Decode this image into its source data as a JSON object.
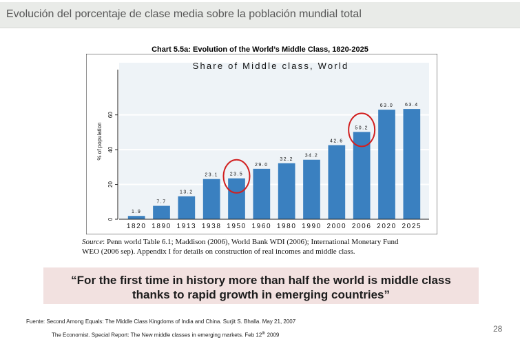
{
  "header": {
    "title": "Evolución del porcentaje de clase media sobre la población mundial total"
  },
  "chart_data": {
    "type": "bar",
    "figure_title": "Chart 5.5a: Evolution of the World’s Middle Class, 1820-2025",
    "title": "Share of Middle class, World",
    "ylabel": "% of population",
    "xlabel": "",
    "ylim": [
      0,
      90
    ],
    "yticks": [
      "0",
      "20",
      "40",
      "60"
    ],
    "categories": [
      "1820",
      "1890",
      "1913",
      "1938",
      "1950",
      "1960",
      "1980",
      "1990",
      "2000",
      "2006",
      "2020",
      "2025"
    ],
    "values": [
      1.9,
      7.7,
      13.2,
      23.1,
      23.5,
      29.0,
      32.2,
      34.2,
      42.6,
      50.2,
      63.0,
      63.4
    ],
    "value_labels": [
      "1.9",
      "7.7",
      "13.2",
      "23.1",
      "23.5",
      "29.0",
      "32.2",
      "34.2",
      "42.6",
      "50.2",
      "63.0",
      "63.4"
    ],
    "highlighted": [
      "1950",
      "2006"
    ],
    "bar_color": "#3a80c0",
    "highlight_color": "#d11f1f",
    "grid": true
  },
  "source": {
    "label": "Source",
    "line1": ": Penn world Table 6.1; Maddison (2006), World Bank WDI (2006); International Monetary Fund",
    "line2": "WEO (2006 sep). Appendix I for details on construction of real incomes and middle class."
  },
  "quote": {
    "line1": "“For the first time in history more than half the world is middle class",
    "line2": "thanks to rapid growth in emerging countries”"
  },
  "footer": {
    "fuente": "Fuente:  Second Among Equals: The Middle Class Kingdoms of India and China. Surjit S. Bhalla. May 21, 2007",
    "economist_main": "The Economist. Special Report: The New middle classes in emerging markets. Feb 12",
    "economist_sup": "th",
    "economist_year": " 2009"
  },
  "page_number": "28"
}
